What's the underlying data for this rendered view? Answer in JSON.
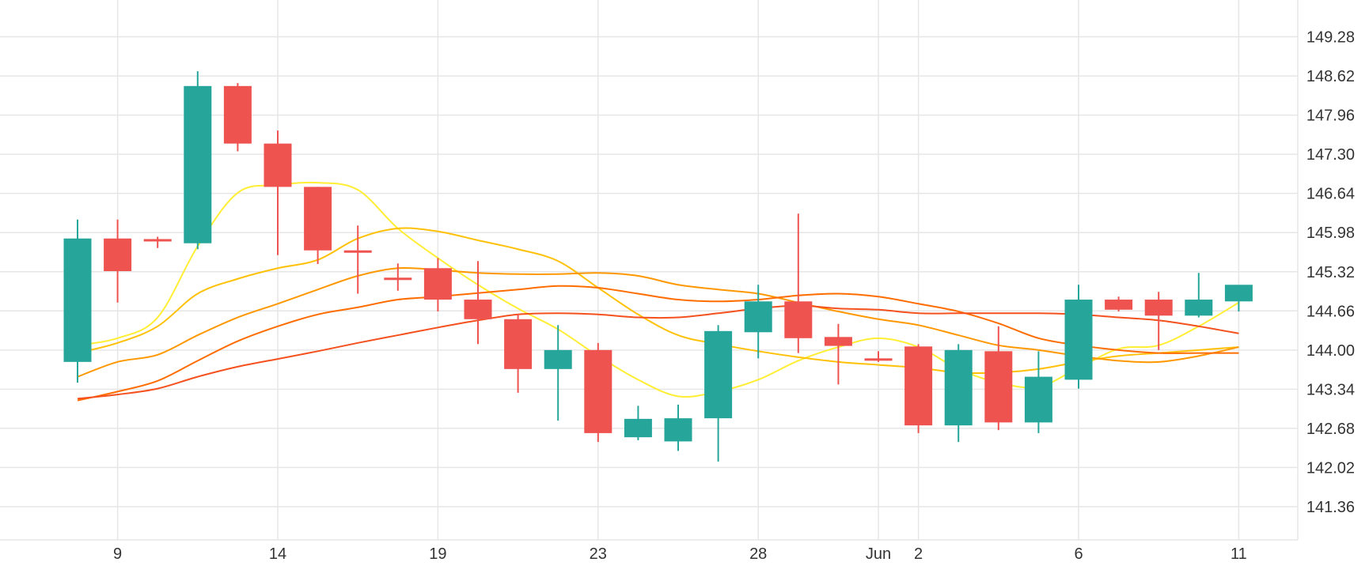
{
  "chart_data": {
    "type": "candlestick",
    "x_tick_labels": [
      "9",
      "14",
      "19",
      "23",
      "28",
      "Jun",
      "2",
      "6",
      "11"
    ],
    "y_tick_labels": [
      "149.28",
      "148.62",
      "147.96",
      "147.30",
      "146.64",
      "145.98",
      "145.32",
      "144.66",
      "144.00",
      "143.34",
      "142.68",
      "142.02",
      "141.36"
    ],
    "ylim": [
      140.8,
      149.9
    ],
    "grid": true,
    "colors": {
      "up": "#26a69a",
      "down": "#ef5350",
      "grid": "#e6e6e6",
      "axis_text": "#333333"
    },
    "candles": [
      {
        "x": 0,
        "open": 143.8,
        "high": 146.2,
        "low": 143.45,
        "close": 145.88
      },
      {
        "x": 1,
        "open": 145.88,
        "high": 146.2,
        "low": 144.8,
        "close": 145.33
      },
      {
        "x": 2,
        "open": 145.87,
        "high": 145.91,
        "low": 145.72,
        "close": 145.85
      },
      {
        "x": 3,
        "open": 145.8,
        "high": 148.7,
        "low": 145.7,
        "close": 148.45
      },
      {
        "x": 4,
        "open": 148.45,
        "high": 148.5,
        "low": 147.35,
        "close": 147.48
      },
      {
        "x": 5,
        "open": 147.48,
        "high": 147.7,
        "low": 145.6,
        "close": 146.75
      },
      {
        "x": 6,
        "open": 146.75,
        "high": 146.75,
        "low": 145.45,
        "close": 145.68
      },
      {
        "x": 7,
        "open": 145.68,
        "high": 146.1,
        "low": 144.95,
        "close": 145.66
      },
      {
        "x": 8,
        "open": 145.22,
        "high": 145.46,
        "low": 145.0,
        "close": 145.19
      },
      {
        "x": 9,
        "open": 145.38,
        "high": 145.55,
        "low": 144.65,
        "close": 144.85
      },
      {
        "x": 10,
        "open": 144.85,
        "high": 145.5,
        "low": 144.1,
        "close": 144.52
      },
      {
        "x": 11,
        "open": 144.52,
        "high": 144.6,
        "low": 143.28,
        "close": 143.68
      },
      {
        "x": 12,
        "open": 143.68,
        "high": 144.42,
        "low": 142.81,
        "close": 144.0
      },
      {
        "x": 13,
        "open": 144.0,
        "high": 144.12,
        "low": 142.45,
        "close": 142.6
      },
      {
        "x": 14,
        "open": 142.53,
        "high": 143.06,
        "low": 142.48,
        "close": 142.84
      },
      {
        "x": 15,
        "open": 142.46,
        "high": 143.08,
        "low": 142.3,
        "close": 142.85
      },
      {
        "x": 16,
        "open": 142.85,
        "high": 144.42,
        "low": 142.12,
        "close": 144.32
      },
      {
        "x": 17,
        "open": 144.3,
        "high": 145.1,
        "low": 143.86,
        "close": 144.82
      },
      {
        "x": 18,
        "open": 144.82,
        "high": 146.3,
        "low": 143.95,
        "close": 144.2
      },
      {
        "x": 19,
        "open": 144.22,
        "high": 144.44,
        "low": 143.42,
        "close": 144.07
      },
      {
        "x": 20,
        "open": 143.86,
        "high": 143.98,
        "low": 143.8,
        "close": 143.82
      },
      {
        "x": 21,
        "open": 144.06,
        "high": 144.1,
        "low": 142.6,
        "close": 142.73
      },
      {
        "x": 22,
        "open": 142.73,
        "high": 144.1,
        "low": 142.45,
        "close": 144.0
      },
      {
        "x": 23,
        "open": 143.98,
        "high": 144.4,
        "low": 142.65,
        "close": 142.78
      },
      {
        "x": 24,
        "open": 142.78,
        "high": 143.98,
        "low": 142.6,
        "close": 143.55
      },
      {
        "x": 25,
        "open": 143.5,
        "high": 145.1,
        "low": 143.35,
        "close": 144.85
      },
      {
        "x": 26,
        "open": 144.85,
        "high": 144.9,
        "low": 144.65,
        "close": 144.68
      },
      {
        "x": 27,
        "open": 144.85,
        "high": 144.98,
        "low": 144.0,
        "close": 144.58
      },
      {
        "x": 28,
        "open": 144.58,
        "high": 145.3,
        "low": 144.55,
        "close": 144.85
      },
      {
        "x": 29,
        "open": 144.82,
        "high": 145.08,
        "low": 144.65,
        "close": 145.1
      }
    ],
    "x_ticks": [
      {
        "label_index": 0,
        "x": 1
      },
      {
        "label_index": 1,
        "x": 5
      },
      {
        "label_index": 2,
        "x": 9
      },
      {
        "label_index": 3,
        "x": 13
      },
      {
        "label_index": 4,
        "x": 17
      },
      {
        "label_index": 5,
        "x": 20
      },
      {
        "label_index": 6,
        "x": 21
      },
      {
        "label_index": 7,
        "x": 25
      },
      {
        "label_index": 8,
        "x": 29
      }
    ],
    "moving_averages": [
      {
        "color": "#ffee33",
        "values": [
          [
            0,
            144.08
          ],
          [
            1,
            144.2
          ],
          [
            2,
            144.55
          ],
          [
            3,
            145.75
          ],
          [
            4,
            146.65
          ],
          [
            5,
            146.78
          ],
          [
            6,
            146.82
          ],
          [
            7,
            146.7
          ],
          [
            8,
            146.05
          ],
          [
            9,
            145.55
          ],
          [
            10,
            145.1
          ],
          [
            11,
            144.7
          ],
          [
            12,
            144.35
          ],
          [
            13,
            143.9
          ],
          [
            14,
            143.5
          ],
          [
            15,
            143.22
          ],
          [
            16,
            143.3
          ],
          [
            17,
            143.5
          ],
          [
            18,
            143.82
          ],
          [
            19,
            144.05
          ],
          [
            20,
            144.2
          ],
          [
            21,
            144.05
          ],
          [
            22,
            143.68
          ],
          [
            23,
            143.45
          ],
          [
            24,
            143.38
          ],
          [
            25,
            143.7
          ],
          [
            26,
            144.02
          ],
          [
            27,
            144.08
          ],
          [
            28,
            144.4
          ],
          [
            29,
            144.8
          ]
        ]
      },
      {
        "color": "#ffc107",
        "values": [
          [
            0,
            143.95
          ],
          [
            1,
            144.12
          ],
          [
            2,
            144.4
          ],
          [
            3,
            144.95
          ],
          [
            4,
            145.2
          ],
          [
            5,
            145.38
          ],
          [
            6,
            145.52
          ],
          [
            7,
            145.88
          ],
          [
            8,
            146.05
          ],
          [
            9,
            146.0
          ],
          [
            10,
            145.85
          ],
          [
            11,
            145.7
          ],
          [
            12,
            145.5
          ],
          [
            13,
            145.05
          ],
          [
            14,
            144.6
          ],
          [
            15,
            144.25
          ],
          [
            16,
            144.1
          ],
          [
            17,
            143.98
          ],
          [
            18,
            143.88
          ],
          [
            19,
            143.8
          ],
          [
            20,
            143.75
          ],
          [
            21,
            143.7
          ],
          [
            22,
            143.62
          ],
          [
            23,
            143.62
          ],
          [
            24,
            143.68
          ],
          [
            25,
            143.8
          ],
          [
            26,
            143.9
          ],
          [
            27,
            143.95
          ],
          [
            28,
            144.0
          ],
          [
            29,
            144.05
          ]
        ]
      },
      {
        "color": "#ff9800",
        "values": [
          [
            0,
            143.55
          ],
          [
            1,
            143.8
          ],
          [
            2,
            143.92
          ],
          [
            3,
            144.25
          ],
          [
            4,
            144.55
          ],
          [
            5,
            144.78
          ],
          [
            6,
            145.02
          ],
          [
            7,
            145.25
          ],
          [
            8,
            145.38
          ],
          [
            9,
            145.35
          ],
          [
            10,
            145.3
          ],
          [
            11,
            145.28
          ],
          [
            12,
            145.28
          ],
          [
            13,
            145.3
          ],
          [
            14,
            145.25
          ],
          [
            15,
            145.1
          ],
          [
            16,
            145.02
          ],
          [
            17,
            144.95
          ],
          [
            18,
            144.8
          ],
          [
            19,
            144.65
          ],
          [
            20,
            144.52
          ],
          [
            21,
            144.42
          ],
          [
            22,
            144.25
          ],
          [
            23,
            144.08
          ],
          [
            24,
            144.0
          ],
          [
            25,
            143.9
          ],
          [
            26,
            143.82
          ],
          [
            27,
            143.8
          ],
          [
            28,
            143.9
          ],
          [
            29,
            144.05
          ]
        ]
      },
      {
        "color": "#ff6d00",
        "values": [
          [
            0,
            143.15
          ],
          [
            1,
            143.3
          ],
          [
            2,
            143.48
          ],
          [
            3,
            143.82
          ],
          [
            4,
            144.15
          ],
          [
            5,
            144.4
          ],
          [
            6,
            144.6
          ],
          [
            7,
            144.72
          ],
          [
            8,
            144.85
          ],
          [
            9,
            144.9
          ],
          [
            10,
            144.96
          ],
          [
            11,
            145.02
          ],
          [
            12,
            145.08
          ],
          [
            13,
            145.05
          ],
          [
            14,
            144.95
          ],
          [
            15,
            144.85
          ],
          [
            16,
            144.82
          ],
          [
            17,
            144.85
          ],
          [
            18,
            144.92
          ],
          [
            19,
            144.95
          ],
          [
            20,
            144.9
          ],
          [
            21,
            144.78
          ],
          [
            22,
            144.65
          ],
          [
            23,
            144.45
          ],
          [
            24,
            144.2
          ],
          [
            25,
            144.08
          ],
          [
            26,
            144.0
          ],
          [
            27,
            143.95
          ],
          [
            28,
            143.95
          ],
          [
            29,
            143.95
          ]
        ]
      },
      {
        "color": "#f4511e",
        "values": [
          [
            0,
            143.18
          ],
          [
            1,
            143.25
          ],
          [
            2,
            143.35
          ],
          [
            3,
            143.55
          ],
          [
            4,
            143.72
          ],
          [
            5,
            143.85
          ],
          [
            6,
            143.98
          ],
          [
            7,
            144.12
          ],
          [
            8,
            144.25
          ],
          [
            9,
            144.38
          ],
          [
            10,
            144.5
          ],
          [
            11,
            144.6
          ],
          [
            12,
            144.62
          ],
          [
            13,
            144.6
          ],
          [
            14,
            144.55
          ],
          [
            15,
            144.55
          ],
          [
            16,
            144.62
          ],
          [
            17,
            144.7
          ],
          [
            18,
            144.75
          ],
          [
            19,
            144.7
          ],
          [
            20,
            144.68
          ],
          [
            21,
            144.62
          ],
          [
            22,
            144.62
          ],
          [
            23,
            144.62
          ],
          [
            24,
            144.62
          ],
          [
            25,
            144.6
          ],
          [
            26,
            144.55
          ],
          [
            27,
            144.5
          ],
          [
            28,
            144.4
          ],
          [
            29,
            144.28
          ]
        ]
      }
    ]
  }
}
